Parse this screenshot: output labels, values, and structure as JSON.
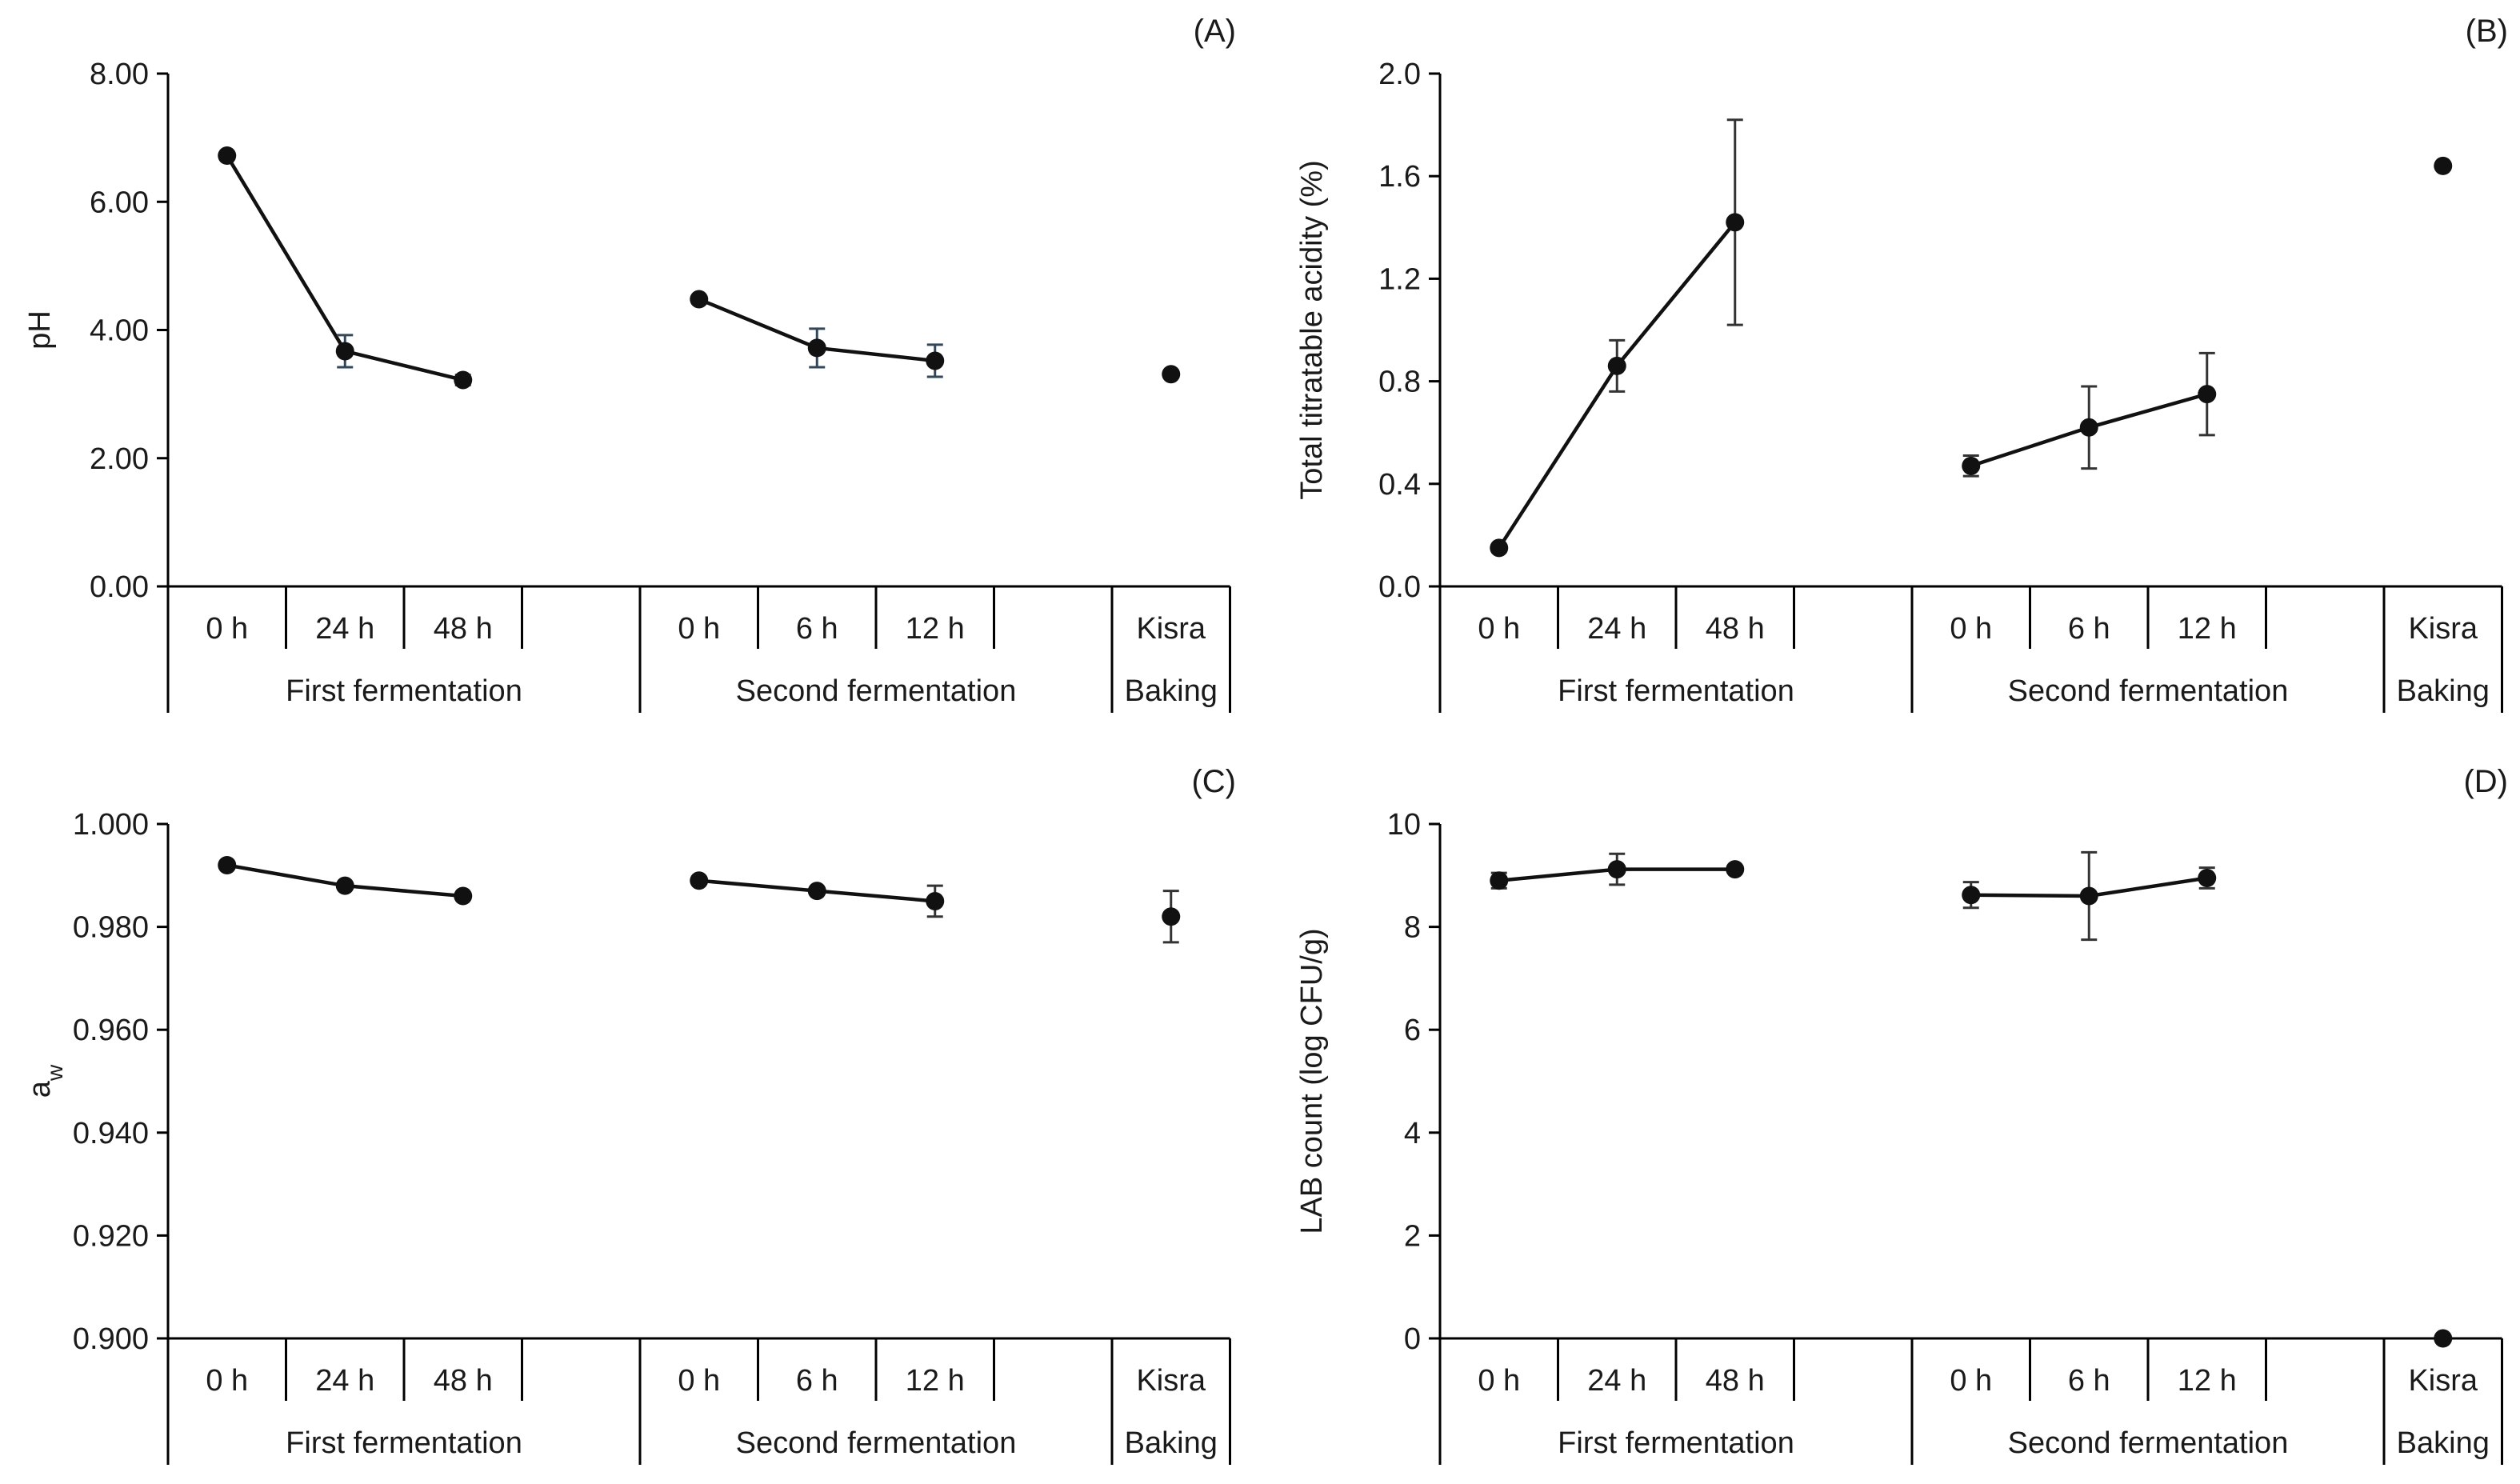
{
  "chart_data": [
    {
      "type": "line",
      "panel_label": "(A)",
      "ylabel": "pH",
      "ylim": [
        0,
        8
      ],
      "yticks": [
        "0.00",
        "2.00",
        "4.00",
        "6.00",
        "8.00"
      ],
      "categories": [
        "0 h",
        "24 h",
        "48 h",
        "0 h",
        "6 h",
        "12 h",
        "Kisra"
      ],
      "groups": [
        "First fermentation",
        "Second fermentation",
        "Baking"
      ],
      "series": [
        {
          "name": "First fermentation",
          "x": [
            0,
            1,
            2
          ],
          "values": [
            6.72,
            3.67,
            3.22
          ],
          "errors": [
            0.0,
            0.25,
            0.08
          ]
        },
        {
          "name": "Second fermentation",
          "x": [
            4,
            5,
            6
          ],
          "values": [
            4.48,
            3.72,
            3.52
          ],
          "errors": [
            0.0,
            0.3,
            0.25
          ]
        },
        {
          "name": "Baking",
          "x": [
            8
          ],
          "values": [
            3.31
          ],
          "errors": [
            0.0
          ]
        }
      ]
    },
    {
      "type": "line",
      "panel_label": "(B)",
      "ylabel": "Total titratable acidity (%)",
      "ylim": [
        0,
        2
      ],
      "yticks": [
        "0.0",
        "0.4",
        "0.8",
        "1.2",
        "1.6",
        "2.0"
      ],
      "categories": [
        "0 h",
        "24 h",
        "48 h",
        "0 h",
        "6 h",
        "12 h",
        "Kisra"
      ],
      "groups": [
        "First fermentation",
        "Second fermentation",
        "Baking"
      ],
      "series": [
        {
          "name": "First fermentation",
          "x": [
            0,
            1,
            2
          ],
          "values": [
            0.15,
            0.86,
            1.42
          ],
          "errors": [
            0.0,
            0.1,
            0.4
          ]
        },
        {
          "name": "Second fermentation",
          "x": [
            4,
            5,
            6
          ],
          "values": [
            0.47,
            0.62,
            0.75
          ],
          "errors": [
            0.04,
            0.16,
            0.16
          ]
        },
        {
          "name": "Baking",
          "x": [
            8
          ],
          "values": [
            1.64
          ],
          "errors": [
            0.0
          ]
        }
      ]
    },
    {
      "type": "line",
      "panel_label": "(C)",
      "ylabel": "a",
      "ylabel_sub": "w",
      "ylim": [
        0.9,
        1.0
      ],
      "yticks": [
        "0.900",
        "0.920",
        "0.940",
        "0.960",
        "0.980",
        "1.000"
      ],
      "categories": [
        "0 h",
        "24 h",
        "48 h",
        "0 h",
        "6 h",
        "12 h",
        "Kisra"
      ],
      "groups": [
        "First fermentation",
        "Second fermentation",
        "Baking"
      ],
      "series": [
        {
          "name": "First fermentation",
          "x": [
            0,
            1,
            2
          ],
          "values": [
            0.992,
            0.988,
            0.986
          ],
          "errors": [
            0.0,
            0.0,
            0.0
          ]
        },
        {
          "name": "Second fermentation",
          "x": [
            4,
            5,
            6
          ],
          "values": [
            0.989,
            0.987,
            0.985
          ],
          "errors": [
            0.0,
            0.0,
            0.003
          ]
        },
        {
          "name": "Baking",
          "x": [
            8
          ],
          "values": [
            0.982
          ],
          "errors": [
            0.005
          ]
        }
      ]
    },
    {
      "type": "line",
      "panel_label": "(D)",
      "ylabel": "LAB count (log CFU/g)",
      "ylim": [
        0,
        10
      ],
      "yticks": [
        "0",
        "2",
        "4",
        "6",
        "8",
        "10"
      ],
      "categories": [
        "0 h",
        "24 h",
        "48 h",
        "0 h",
        "6 h",
        "12 h",
        "Kisra"
      ],
      "groups": [
        "First fermentation",
        "Second fermentation",
        "Baking"
      ],
      "series": [
        {
          "name": "First fermentation",
          "x": [
            0,
            1,
            2
          ],
          "values": [
            8.9,
            9.12,
            9.12
          ],
          "errors": [
            0.15,
            0.3,
            0.05
          ]
        },
        {
          "name": "Second fermentation",
          "x": [
            4,
            5,
            6
          ],
          "values": [
            8.62,
            8.6,
            8.95
          ],
          "errors": [
            0.25,
            0.85,
            0.2
          ]
        },
        {
          "name": "Baking",
          "x": [
            8
          ],
          "values": [
            0.0
          ],
          "errors": [
            0.0
          ]
        }
      ]
    }
  ]
}
